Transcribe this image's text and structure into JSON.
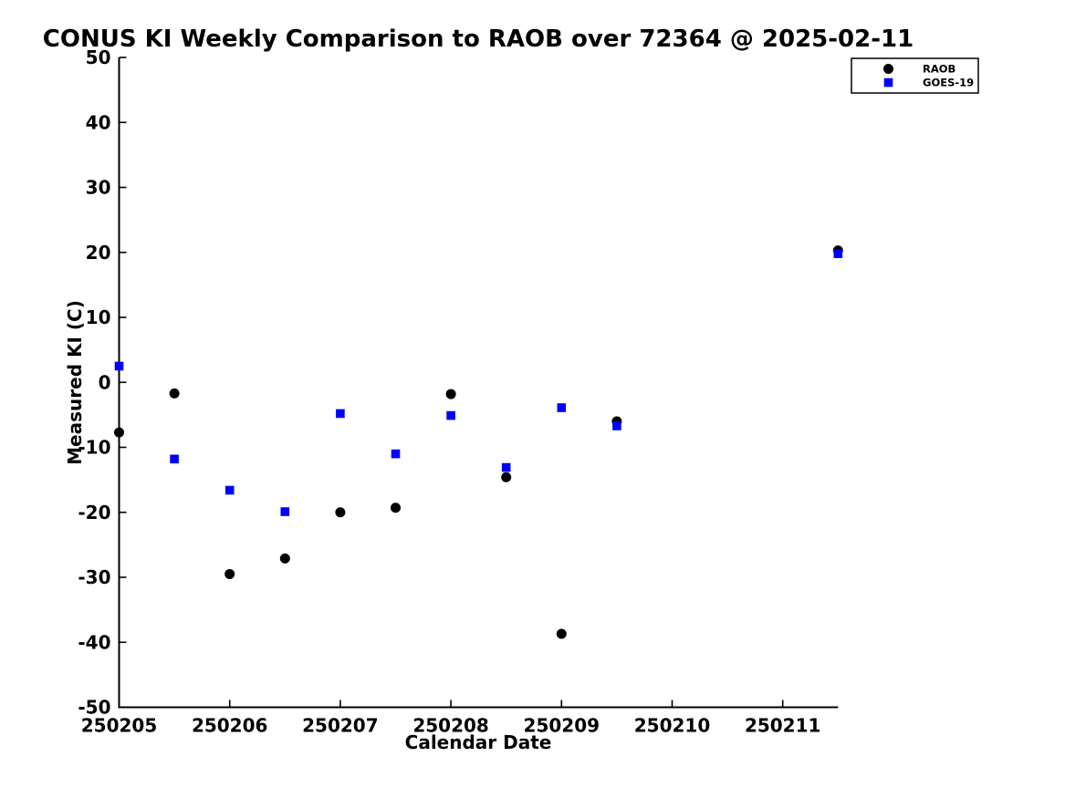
{
  "chart_data": {
    "type": "scatter",
    "title": "CONUS KI Weekly Comparison to RAOB over 72364 @ 2025-02-11",
    "xlabel": "Calendar Date",
    "ylabel": "Measured KI (C)",
    "xlim": [
      250205,
      250211.5
    ],
    "ylim": [
      -50,
      50
    ],
    "grid": false,
    "x_tick_values": [
      250205,
      250206,
      250207,
      250208,
      250209,
      250210,
      250211
    ],
    "x_tick_labels": [
      "250205",
      "250206",
      "250207",
      "250208",
      "250209",
      "250210",
      "250211"
    ],
    "y_ticks": [
      -50,
      -40,
      -30,
      -20,
      -10,
      0,
      10,
      20,
      30,
      40,
      50
    ],
    "y_tick_labels": [
      "-50",
      "-40",
      "-30",
      "-20",
      "-10",
      "0",
      "10",
      "20",
      "30",
      "40",
      "50"
    ],
    "legend": {
      "position": "top-right",
      "entries": [
        {
          "label": "RAOB",
          "marker": "circle",
          "color": "#000000"
        },
        {
          "label": "GOES-19",
          "marker": "square",
          "color": "#0000ff"
        }
      ]
    },
    "series": [
      {
        "name": "RAOB",
        "marker": "circle",
        "color": "#000000",
        "x": [
          250205,
          250205.5,
          250206,
          250206.5,
          250207,
          250207.5,
          250208,
          250208.5,
          250209,
          250209.5,
          250211.5
        ],
        "y": [
          -7.7,
          -1.7,
          -29.5,
          -27.1,
          -20.0,
          -19.3,
          -1.8,
          -14.6,
          -38.7,
          -6.0,
          20.3
        ]
      },
      {
        "name": "GOES-19",
        "marker": "square",
        "color": "#0000ff",
        "x": [
          250205,
          250205.5,
          250206,
          250206.5,
          250207,
          250207.5,
          250208,
          250208.5,
          250209,
          250209.5,
          250211.5
        ],
        "y": [
          2.5,
          -11.8,
          -16.6,
          -19.9,
          -4.8,
          -11.0,
          -5.1,
          -13.1,
          -3.9,
          -6.7,
          19.8
        ]
      }
    ]
  }
}
